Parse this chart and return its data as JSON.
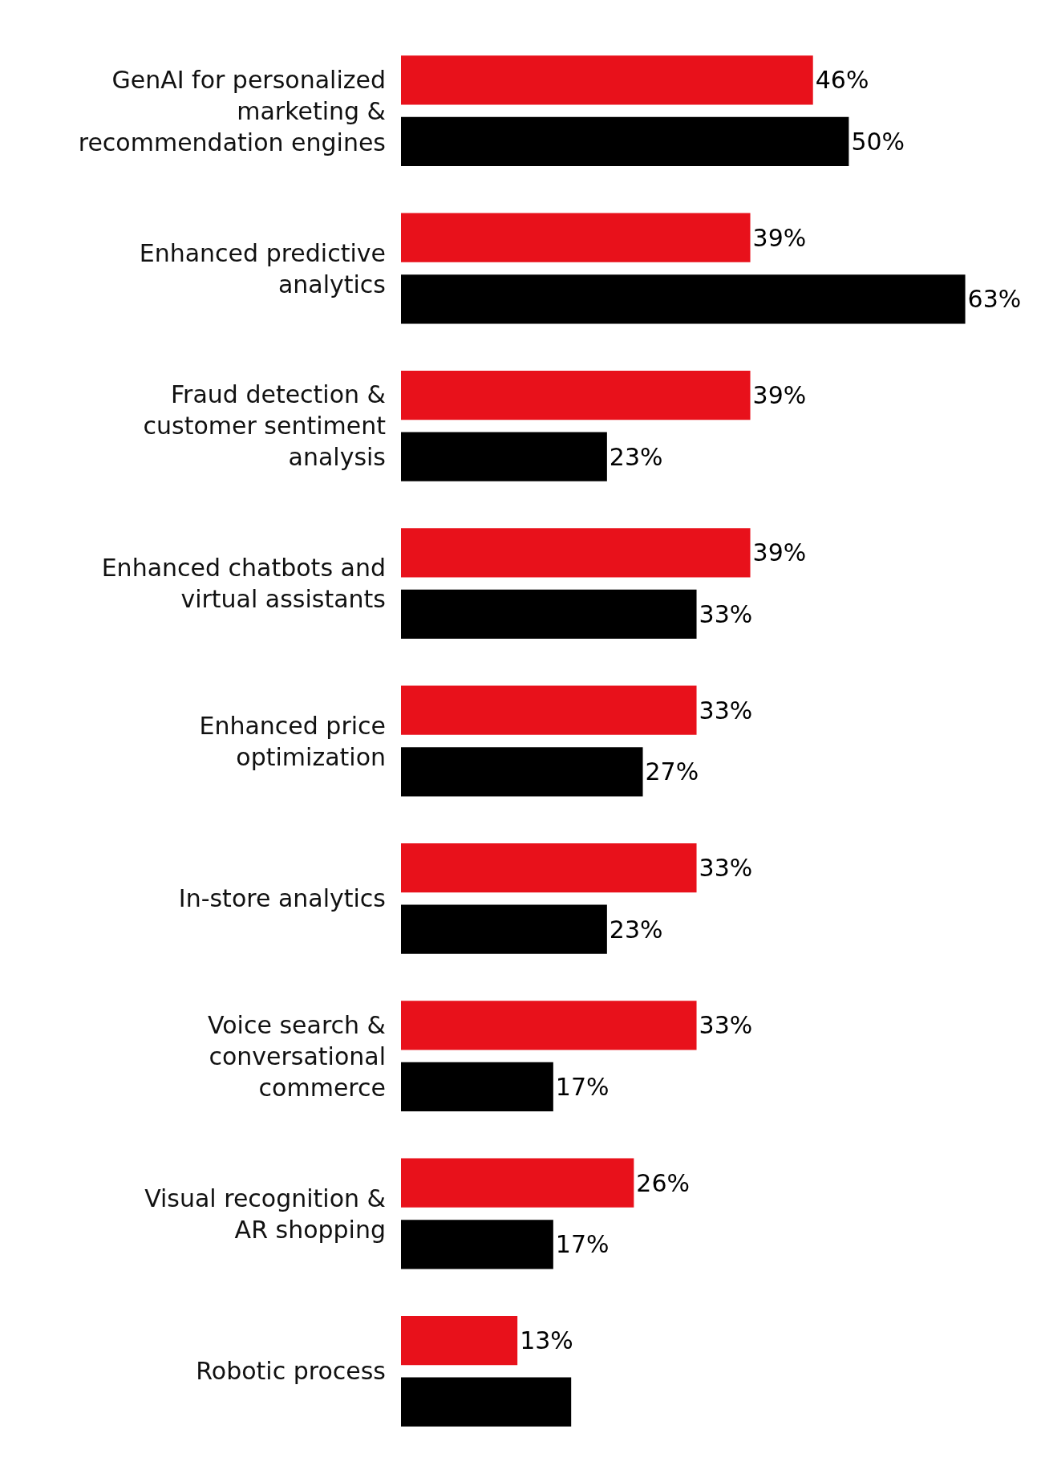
{
  "chart_data": {
    "type": "bar",
    "orientation": "horizontal",
    "categories": [
      "GenAI for personalized marketing & recommendation engines",
      "Enhanced predictive analytics",
      "Fraud detection & customer sentiment analysis",
      "Enhanced chatbots and virtual assistants",
      "Enhanced price optimization",
      "In-store analytics",
      "Voice search & conversational commerce",
      "Visual recognition & AR shopping",
      "Robotic process"
    ],
    "series": [
      {
        "color": "#e8111b",
        "values": [
          46,
          39,
          39,
          39,
          33,
          33,
          33,
          26,
          13
        ],
        "value_labels": [
          "46%",
          "39%",
          "39%",
          "39%",
          "33%",
          "33%",
          "33%",
          "26%",
          "13%"
        ]
      },
      {
        "color": "#000000",
        "values": [
          50,
          63,
          23,
          33,
          27,
          23,
          17,
          17,
          19
        ],
        "value_labels": [
          "50%",
          "63%",
          "23%",
          "33%",
          "27%",
          "23%",
          "17%",
          "17%",
          null
        ]
      }
    ]
  }
}
